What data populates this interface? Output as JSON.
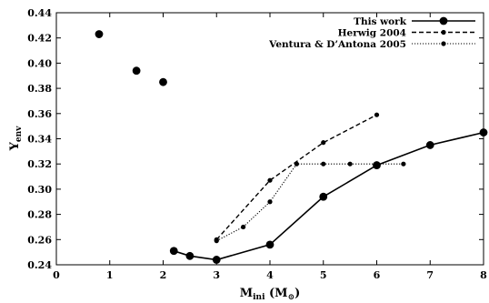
{
  "chart_data": {
    "type": "line",
    "xlabel_main": "M",
    "xlabel_sub": "ini",
    "xlabel_unit_open": " (M",
    "xlabel_unit_sub": "⊙",
    "xlabel_unit_close": ")",
    "ylabel_main": "Y",
    "ylabel_sub": "env",
    "xlim": [
      0,
      8
    ],
    "ylim": [
      0.24,
      0.44
    ],
    "xticks": [
      "0",
      "1",
      "2",
      "3",
      "4",
      "5",
      "6",
      "7",
      "8"
    ],
    "yticks": [
      "0.24",
      "0.26",
      "0.28",
      "0.30",
      "0.32",
      "0.34",
      "0.36",
      "0.38",
      "0.40",
      "0.42",
      "0.44"
    ],
    "grid": false,
    "legend_position": "top-right",
    "series": [
      {
        "name": "This work",
        "style": "solid",
        "color": "#000000",
        "points": [
          [
            2.2,
            0.251
          ],
          [
            2.5,
            0.247
          ],
          [
            3.0,
            0.244
          ],
          [
            4.0,
            0.256
          ],
          [
            5.0,
            0.294
          ],
          [
            6.0,
            0.319
          ],
          [
            7.0,
            0.335
          ],
          [
            8.0,
            0.345
          ]
        ]
      },
      {
        "name": "",
        "style": "markers",
        "color": "#000000",
        "points": [
          [
            0.8,
            0.423
          ],
          [
            1.5,
            0.394
          ],
          [
            2.0,
            0.385
          ]
        ]
      },
      {
        "name": "Herwig 2004",
        "style": "dashed",
        "color": "#000000",
        "points": [
          [
            3.0,
            0.26
          ],
          [
            4.0,
            0.307
          ],
          [
            5.0,
            0.337
          ],
          [
            6.0,
            0.359
          ]
        ]
      },
      {
        "name": "Ventura & D’Antona 2005",
        "style": "dotted",
        "color": "#000000",
        "points": [
          [
            3.0,
            0.259
          ],
          [
            3.5,
            0.27
          ],
          [
            4.0,
            0.29
          ],
          [
            4.5,
            0.32
          ],
          [
            5.0,
            0.32
          ],
          [
            5.5,
            0.32
          ],
          [
            6.0,
            0.32
          ],
          [
            6.5,
            0.32
          ]
        ]
      }
    ]
  }
}
